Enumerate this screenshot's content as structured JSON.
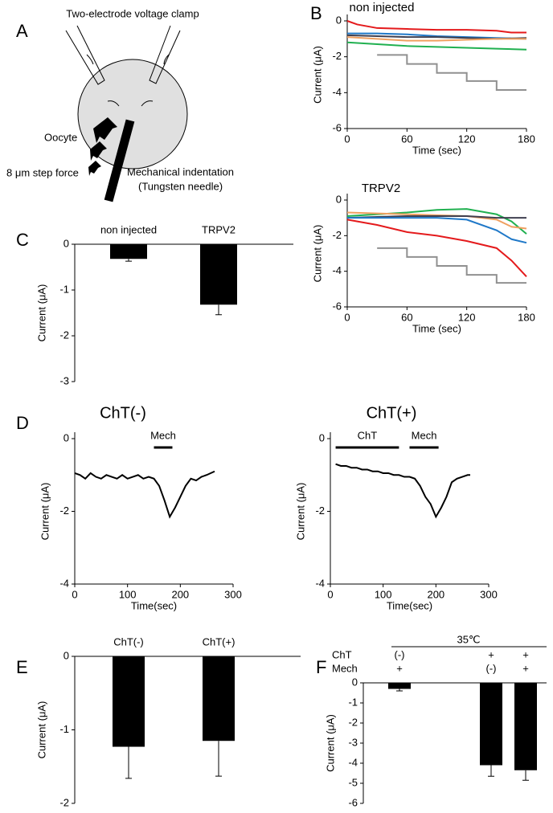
{
  "panel_labels": [
    "A",
    "B",
    "C",
    "D",
    "E",
    "F"
  ],
  "diagram": {
    "title": "Two-electrode voltage clamp",
    "cell_label": "Oocyte",
    "force_label": "8 μm step force",
    "needle_label": "Mechanical indentation",
    "needle_sublabel": "(Tungsten needle)"
  },
  "chart_data": [
    {
      "type": "line",
      "title": "non injected",
      "ylabel": "Current (μA)",
      "xlabel": "Time (sec)",
      "xlim": [
        0,
        180
      ],
      "xticks": [
        0,
        60,
        120,
        180
      ],
      "ylim": [
        -6,
        0
      ],
      "yticks": [
        0,
        -2,
        -4,
        -6
      ],
      "series": [
        {
          "color": "#e41a1c",
          "x": [
            0,
            10,
            30,
            60,
            90,
            120,
            150,
            165,
            180
          ],
          "values": [
            0,
            -0.2,
            -0.4,
            -0.45,
            -0.5,
            -0.5,
            -0.55,
            -0.65,
            -0.65
          ]
        },
        {
          "color": "#1f78c8",
          "x": [
            0,
            30,
            60,
            90,
            120,
            150,
            180
          ],
          "values": [
            -0.7,
            -0.7,
            -0.75,
            -0.85,
            -0.9,
            -0.95,
            -1.0
          ]
        },
        {
          "color": "#404050",
          "x": [
            0,
            30,
            60,
            90,
            120,
            150,
            180
          ],
          "values": [
            -0.8,
            -0.85,
            -0.9,
            -0.9,
            -0.95,
            -1.0,
            -0.95
          ]
        },
        {
          "color": "#f0a060",
          "x": [
            0,
            30,
            60,
            90,
            120,
            150,
            180
          ],
          "values": [
            -0.9,
            -1.0,
            -1.1,
            -1.1,
            -1.05,
            -1.0,
            -1.0
          ]
        },
        {
          "color": "#20b050",
          "x": [
            0,
            30,
            60,
            90,
            120,
            150,
            180
          ],
          "values": [
            -1.2,
            -1.3,
            -1.4,
            -1.45,
            -1.5,
            -1.55,
            -1.6
          ]
        },
        {
          "color": "#909090",
          "x": [
            30,
            60,
            60,
            90,
            90,
            120,
            120,
            150,
            150,
            180
          ],
          "values": [
            -1.9,
            -1.9,
            -2.4,
            -2.4,
            -2.9,
            -2.9,
            -3.35,
            -3.35,
            -3.85,
            -3.85
          ]
        }
      ]
    },
    {
      "type": "line",
      "title": "TRPV2",
      "ylabel": "Current (μA)",
      "xlabel": "Time (sec)",
      "xlim": [
        0,
        180
      ],
      "xticks": [
        0,
        60,
        120,
        180
      ],
      "ylim": [
        -6,
        0
      ],
      "yticks": [
        0,
        -2,
        -4,
        -6
      ],
      "series": [
        {
          "color": "#20b050",
          "x": [
            0,
            30,
            60,
            90,
            120,
            150,
            165,
            180
          ],
          "values": [
            -0.9,
            -0.8,
            -0.7,
            -0.55,
            -0.5,
            -0.8,
            -1.2,
            -1.9
          ]
        },
        {
          "color": "#f0a060",
          "x": [
            0,
            30,
            60,
            90,
            120,
            150,
            165,
            180
          ],
          "values": [
            -0.7,
            -0.75,
            -0.8,
            -0.85,
            -0.9,
            -1.1,
            -1.5,
            -1.6
          ]
        },
        {
          "color": "#404050",
          "x": [
            0,
            30,
            60,
            90,
            120,
            150,
            165,
            180
          ],
          "values": [
            -1.0,
            -0.95,
            -0.9,
            -0.9,
            -0.9,
            -1.0,
            -1.0,
            -1.0
          ]
        },
        {
          "color": "#1f78c8",
          "x": [
            0,
            30,
            60,
            90,
            120,
            150,
            165,
            180
          ],
          "values": [
            -1.0,
            -1.0,
            -1.0,
            -1.0,
            -1.1,
            -1.7,
            -2.2,
            -2.4
          ]
        },
        {
          "color": "#e41a1c",
          "x": [
            0,
            30,
            60,
            90,
            120,
            150,
            165,
            180
          ],
          "values": [
            -1.1,
            -1.4,
            -1.8,
            -2.0,
            -2.3,
            -2.7,
            -3.4,
            -4.3
          ]
        },
        {
          "color": "#909090",
          "x": [
            30,
            60,
            60,
            90,
            90,
            120,
            120,
            150,
            150,
            180
          ],
          "values": [
            -2.7,
            -2.7,
            -3.2,
            -3.2,
            -3.7,
            -3.7,
            -4.2,
            -4.2,
            -4.65,
            -4.65
          ]
        }
      ]
    },
    {
      "type": "bar",
      "categories": [
        "non injected",
        "TRPV2"
      ],
      "values": [
        -0.32,
        -1.32
      ],
      "errors": [
        0.05,
        0.22
      ],
      "ylabel": "Current (μA)",
      "ylim": [
        -3,
        0
      ],
      "yticks": [
        0,
        -1,
        -2,
        -3
      ],
      "color": "#000000"
    },
    {
      "type": "line",
      "title": "ChT(-)",
      "ylabel": "Current (μA)",
      "xlabel": "Time(sec)",
      "xlim": [
        0,
        300
      ],
      "xticks": [
        0,
        100,
        200,
        300
      ],
      "ylim": [
        -4,
        0
      ],
      "yticks": [
        0,
        -2,
        -4
      ],
      "series": [
        {
          "color": "#000000",
          "x": [
            0,
            10,
            20,
            30,
            40,
            50,
            60,
            70,
            80,
            90,
            100,
            110,
            120,
            130,
            140,
            150,
            160,
            170,
            180,
            190,
            200,
            210,
            220,
            230,
            240,
            250,
            265
          ],
          "values": [
            -0.95,
            -1.0,
            -1.1,
            -0.95,
            -1.05,
            -1.1,
            -1.0,
            -1.05,
            -1.1,
            -1.0,
            -1.1,
            -1.05,
            -1.0,
            -1.1,
            -1.05,
            -1.1,
            -1.3,
            -1.7,
            -2.15,
            -1.9,
            -1.6,
            -1.3,
            -1.1,
            -1.15,
            -1.05,
            -1.0,
            -0.9
          ]
        }
      ],
      "annotations": [
        {
          "text": "Mech",
          "x": [
            150,
            185
          ]
        }
      ]
    },
    {
      "type": "line",
      "title": "ChT(+)",
      "ylabel": "Current (μA)",
      "xlabel": "Time(sec)",
      "xlim": [
        0,
        300
      ],
      "xticks": [
        0,
        100,
        200,
        300
      ],
      "ylim": [
        -4,
        0
      ],
      "yticks": [
        0,
        -2,
        -4
      ],
      "series": [
        {
          "color": "#000000",
          "x": [
            10,
            20,
            30,
            40,
            50,
            60,
            70,
            80,
            90,
            100,
            110,
            120,
            130,
            140,
            150,
            160,
            170,
            180,
            190,
            200,
            210,
            220,
            230,
            240,
            250,
            260,
            265
          ],
          "values": [
            -0.7,
            -0.75,
            -0.75,
            -0.8,
            -0.8,
            -0.85,
            -0.85,
            -0.9,
            -0.9,
            -0.95,
            -0.95,
            -1.0,
            -1.0,
            -1.05,
            -1.05,
            -1.1,
            -1.3,
            -1.6,
            -1.8,
            -2.15,
            -1.9,
            -1.6,
            -1.2,
            -1.1,
            -1.05,
            -1.0,
            -1.0
          ]
        }
      ],
      "annotations": [
        {
          "text": "ChT",
          "x": [
            10,
            130
          ]
        },
        {
          "text": "Mech",
          "x": [
            150,
            205
          ]
        }
      ]
    },
    {
      "type": "bar",
      "categories": [
        "ChT(-)",
        "ChT(+)"
      ],
      "values": [
        -1.23,
        -1.15
      ],
      "errors": [
        0.43,
        0.48
      ],
      "ylabel": "Current (μA)",
      "ylim": [
        -2,
        0
      ],
      "yticks": [
        0,
        -1,
        -2
      ],
      "color": "#000000"
    },
    {
      "type": "bar",
      "values": [
        -0.3,
        -4.1,
        -4.35
      ],
      "errors": [
        0.1,
        0.55,
        0.5
      ],
      "ylabel": "Current (μA)",
      "ylim": [
        -6,
        0
      ],
      "yticks": [
        0,
        -1,
        -2,
        -3,
        -4,
        -5,
        -6
      ],
      "color": "#000000",
      "conditions": {
        "header": "35℃",
        "rows": [
          {
            "label": "ChT",
            "cells": [
              "(-)",
              "+",
              "+"
            ]
          },
          {
            "label": "Mech",
            "cells": [
              "+",
              "(-)",
              "+"
            ]
          }
        ]
      }
    }
  ]
}
